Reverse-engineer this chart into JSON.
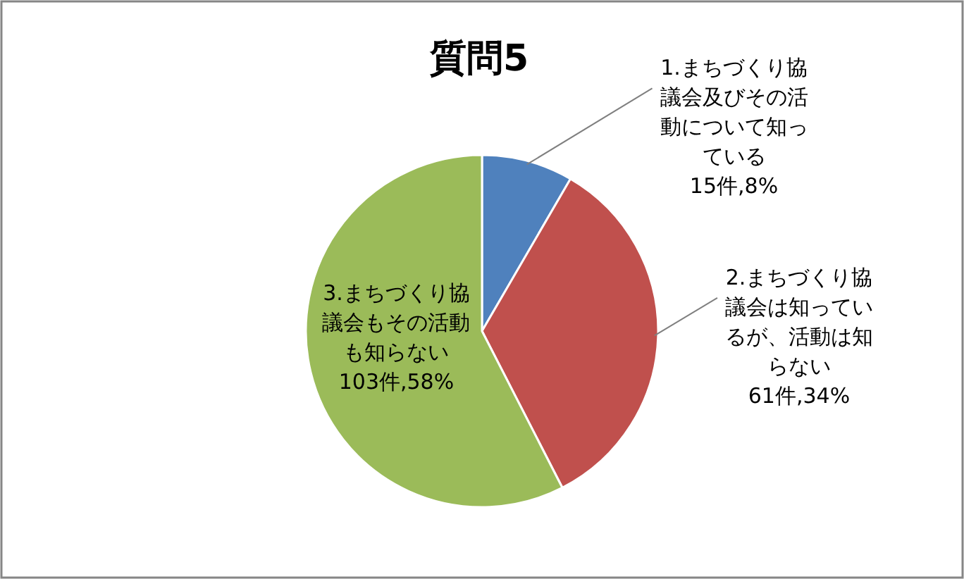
{
  "chart_data": {
    "type": "pie",
    "title": "質問5",
    "categories": [
      "1.まちづくり協議会及びその活動について知っている",
      "2.まちづくり協議会は知っているが、活動は知らない",
      "3.まちづくり協議会もその活動も知らない"
    ],
    "values": [
      15,
      61,
      103
    ],
    "value_labels": [
      "15件,8%",
      "61件,34%",
      "103件,58%"
    ],
    "colors": [
      "#4f81bd",
      "#c0504d",
      "#9bbb59"
    ]
  }
}
